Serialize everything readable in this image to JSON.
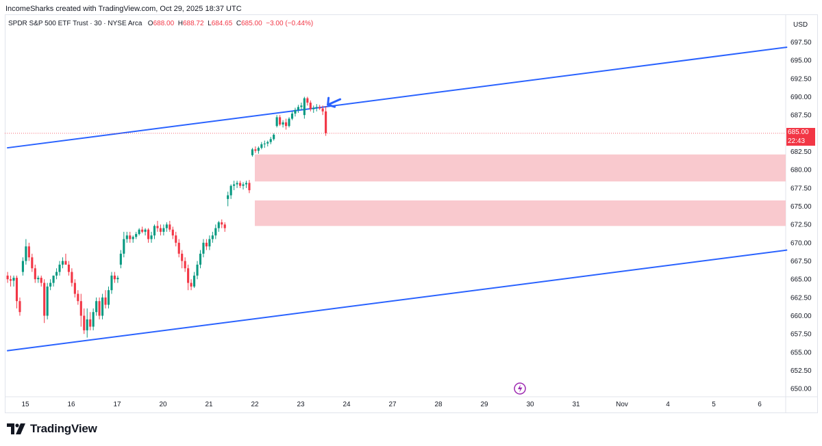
{
  "credit": "IncomeSharks created with TradingView.com, Oct 29, 2025 18:37 UTC",
  "header": {
    "symbol": "SPDR S&P 500 ETF Trust · 30 · NYSE Arca",
    "o_label": "O",
    "o_value": "688.00",
    "h_label": "H",
    "h_value": "688.72",
    "l_label": "L",
    "l_value": "684.65",
    "c_label": "C",
    "c_value": "685.00",
    "change": "−3.00 (−0.44%)"
  },
  "currency": "USD",
  "last_price": {
    "price": "685.00",
    "countdown": "22:43"
  },
  "brand": "TradingView",
  "colors": {
    "up": "#089981",
    "down": "#f23645",
    "channel": "#2962ff",
    "zone": "#f9c6cb",
    "arrow": "#2962ff"
  },
  "chart_data": {
    "type": "candlestick",
    "y_ticks": [
      "697.50",
      "695.00",
      "692.50",
      "690.00",
      "687.50",
      "685.00",
      "682.50",
      "680.00",
      "677.50",
      "675.00",
      "672.50",
      "670.00",
      "667.50",
      "665.00",
      "662.50",
      "660.00",
      "657.50",
      "655.00",
      "652.50",
      "650.00"
    ],
    "ylim": [
      648.8,
      699.0
    ],
    "x_ticks": [
      "15",
      "16",
      "17",
      "20",
      "21",
      "22",
      "23",
      "24",
      "27",
      "28",
      "29",
      "30",
      "31",
      "Nov",
      "4",
      "5",
      "6"
    ],
    "channel_upper": {
      "from": {
        "day_index": -0.4,
        "price": 683.0
      },
      "to": {
        "day_index": 16.6,
        "price": 696.8
      }
    },
    "channel_lower": {
      "from": {
        "day_index": -0.4,
        "price": 655.2
      },
      "to": {
        "day_index": 16.6,
        "price": 669.0
      }
    },
    "zones": [
      {
        "from_day_index": 5.0,
        "to_day_index": 16.6,
        "top": 682.1,
        "bottom": 678.4
      },
      {
        "from_day_index": 5.0,
        "to_day_index": 16.6,
        "top": 675.8,
        "bottom": 672.3
      }
    ],
    "annotation": "arrow pointing at last candle",
    "candles": [
      [
        665.5,
        666.0,
        664.5,
        665.0
      ],
      [
        665.0,
        665.5,
        664.0,
        664.8
      ],
      [
        664.8,
        665.5,
        664.0,
        665.2
      ],
      [
        665.2,
        665.5,
        661.0,
        662.0
      ],
      [
        662.0,
        662.5,
        660.0,
        660.5
      ],
      [
        666.0,
        668.0,
        665.5,
        667.5
      ],
      [
        667.5,
        670.5,
        667.0,
        669.5
      ],
      [
        669.5,
        670.0,
        667.5,
        668.0
      ],
      [
        668.0,
        668.5,
        666.0,
        666.5
      ],
      [
        666.5,
        667.0,
        664.5,
        665.0
      ],
      [
        665.0,
        665.5,
        664.5,
        665.2
      ],
      [
        665.2,
        665.5,
        664.0,
        664.5
      ],
      [
        664.5,
        665.0,
        659.0,
        660.0
      ],
      [
        660.0,
        664.5,
        659.5,
        664.0
      ],
      [
        664.0,
        665.0,
        663.5,
        664.5
      ],
      [
        664.5,
        665.5,
        664.0,
        665.5
      ],
      [
        665.5,
        666.5,
        665.0,
        666.0
      ],
      [
        666.0,
        667.5,
        665.5,
        667.0
      ],
      [
        667.0,
        668.0,
        666.5,
        667.5
      ],
      [
        667.5,
        668.5,
        667.0,
        667.0
      ],
      [
        667.0,
        667.5,
        665.5,
        666.0
      ],
      [
        666.0,
        666.5,
        664.0,
        664.5
      ],
      [
        664.5,
        665.0,
        662.5,
        663.0
      ],
      [
        663.0,
        663.5,
        661.5,
        662.0
      ],
      [
        662.0,
        663.0,
        658.5,
        660.0
      ],
      [
        660.0,
        661.0,
        657.5,
        658.0
      ],
      [
        658.0,
        661.0,
        657.0,
        659.5
      ],
      [
        659.5,
        660.5,
        658.0,
        658.5
      ],
      [
        658.5,
        661.0,
        658.0,
        660.5
      ],
      [
        660.5,
        662.5,
        660.0,
        662.0
      ],
      [
        662.0,
        662.5,
        659.5,
        660.0
      ],
      [
        660.0,
        663.0,
        659.5,
        662.5
      ],
      [
        662.5,
        663.5,
        661.0,
        661.5
      ],
      [
        661.5,
        664.0,
        661.0,
        663.5
      ],
      [
        663.5,
        666.0,
        663.0,
        665.5
      ],
      [
        665.5,
        666.0,
        664.5,
        665.0
      ],
      [
        665.0,
        665.5,
        664.5,
        665.2
      ],
      [
        667.0,
        669.0,
        666.5,
        668.5
      ],
      [
        668.5,
        671.5,
        668.0,
        670.5
      ],
      [
        670.5,
        671.5,
        670.0,
        671.0
      ],
      [
        671.0,
        671.5,
        670.0,
        670.5
      ],
      [
        670.5,
        671.0,
        670.0,
        670.8
      ],
      [
        670.8,
        671.5,
        670.5,
        671.2
      ],
      [
        671.2,
        672.0,
        671.0,
        671.8
      ],
      [
        671.8,
        672.2,
        671.3,
        671.5
      ],
      [
        671.5,
        672.0,
        671.0,
        671.8
      ],
      [
        671.8,
        672.0,
        670.0,
        670.5
      ],
      [
        670.5,
        671.5,
        670.0,
        671.0
      ],
      [
        671.0,
        672.5,
        670.5,
        672.3
      ],
      [
        672.3,
        673.0,
        671.5,
        672.0
      ],
      [
        672.0,
        672.5,
        671.0,
        671.5
      ],
      [
        671.5,
        672.5,
        671.0,
        672.0
      ],
      [
        672.0,
        672.8,
        671.5,
        672.5
      ],
      [
        672.5,
        673.0,
        671.5,
        671.8
      ],
      [
        671.8,
        672.2,
        670.5,
        671.0
      ],
      [
        671.0,
        671.5,
        669.5,
        670.0
      ],
      [
        670.0,
        670.5,
        668.0,
        668.5
      ],
      [
        668.5,
        669.0,
        666.5,
        667.5
      ],
      [
        667.5,
        668.0,
        666.0,
        666.5
      ],
      [
        666.5,
        667.0,
        663.5,
        664.5
      ],
      [
        664.5,
        665.0,
        663.5,
        664.0
      ],
      [
        664.0,
        666.0,
        663.8,
        665.5
      ],
      [
        665.5,
        667.5,
        665.0,
        667.0
      ],
      [
        667.0,
        669.0,
        666.5,
        668.5
      ],
      [
        668.5,
        670.5,
        668.0,
        670.0
      ],
      [
        670.0,
        670.5,
        669.0,
        669.5
      ],
      [
        669.5,
        671.0,
        669.0,
        670.5
      ],
      [
        670.5,
        671.5,
        670.0,
        671.0
      ],
      [
        671.0,
        672.5,
        670.5,
        672.0
      ],
      [
        672.0,
        673.0,
        671.5,
        672.8
      ],
      [
        672.8,
        673.2,
        672.0,
        672.5
      ],
      [
        672.5,
        672.8,
        671.5,
        672.0
      ],
      [
        676.0,
        677.0,
        675.0,
        676.5
      ],
      [
        676.5,
        678.0,
        676.0,
        677.8
      ],
      [
        677.8,
        678.5,
        677.2,
        678.0
      ],
      [
        678.0,
        678.5,
        677.5,
        678.2
      ],
      [
        678.2,
        678.5,
        677.5,
        677.8
      ],
      [
        677.8,
        678.3,
        677.3,
        678.0
      ],
      [
        678.0,
        678.5,
        677.5,
        678.2
      ],
      [
        678.2,
        678.6,
        676.8,
        677.2
      ],
      [
        682.0,
        683.0,
        681.8,
        682.8
      ],
      [
        682.8,
        683.2,
        682.3,
        682.6
      ],
      [
        682.6,
        683.2,
        682.2,
        683.0
      ],
      [
        683.0,
        683.8,
        682.8,
        683.5
      ],
      [
        683.5,
        684.0,
        683.0,
        683.6
      ],
      [
        683.6,
        684.0,
        683.2,
        683.8
      ],
      [
        683.8,
        684.5,
        683.5,
        684.2
      ],
      [
        684.2,
        685.0,
        684.0,
        684.8
      ],
      [
        686.0,
        687.5,
        685.8,
        687.2
      ],
      [
        687.2,
        687.5,
        686.0,
        686.2
      ],
      [
        686.2,
        686.8,
        685.8,
        686.5
      ],
      [
        686.5,
        687.0,
        685.5,
        686.0
      ],
      [
        686.0,
        687.2,
        685.8,
        687.0
      ],
      [
        687.0,
        688.0,
        686.8,
        687.7
      ],
      [
        687.7,
        688.5,
        687.3,
        688.2
      ],
      [
        688.2,
        688.9,
        687.8,
        688.6
      ],
      [
        688.6,
        689.2,
        688.2,
        688.8
      ],
      [
        687.5,
        690.0,
        687.0,
        689.8
      ],
      [
        689.8,
        690.0,
        688.8,
        689.2
      ],
      [
        689.2,
        689.5,
        688.0,
        688.3
      ],
      [
        688.3,
        688.8,
        687.8,
        688.5
      ],
      [
        688.5,
        689.0,
        688.0,
        688.6
      ],
      [
        688.6,
        688.9,
        688.2,
        688.4
      ],
      [
        688.4,
        688.8,
        687.5,
        688.0
      ],
      [
        688.0,
        688.72,
        684.65,
        685.0
      ]
    ]
  }
}
